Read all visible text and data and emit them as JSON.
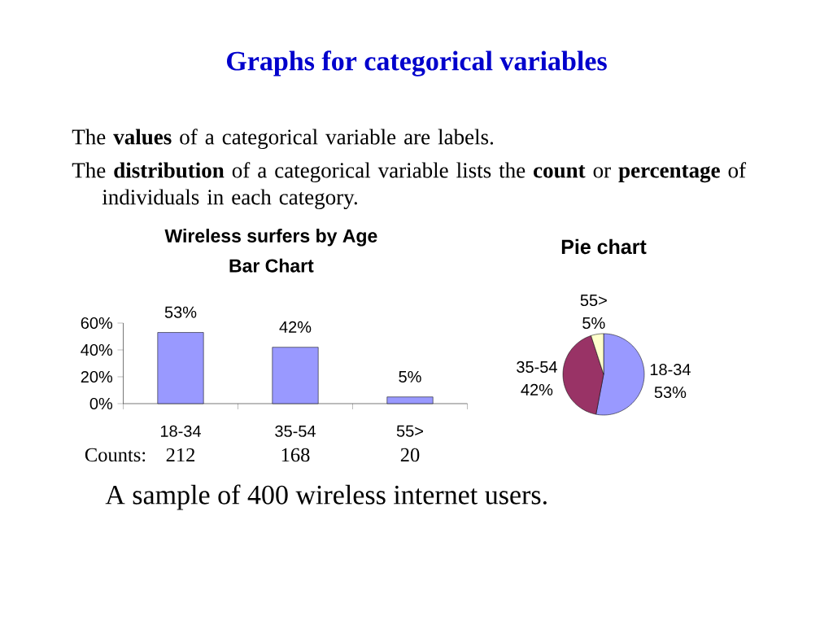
{
  "chart_data": [
    {
      "type": "other",
      "title": "Graphs for categorical variables",
      "annotations": [
        "The **values** of a categorical variable are labels.",
        "The **distribution** of a categorical variable lists the **count** or **percentage** of individuals in each category.",
        "A sample of 400 wireless internet users."
      ]
    },
    {
      "type": "bar",
      "title": "Wireless surfers by Age",
      "subtitle": "Bar Chart",
      "categories": [
        "18-34",
        "35-54",
        "55>"
      ],
      "values": [
        53,
        42,
        5
      ],
      "value_labels": [
        "53%",
        "42%",
        "5%"
      ],
      "color": "#9999ff",
      "ylim": [
        0,
        60
      ],
      "yticks": [
        {
          "value": 0,
          "label": "0%"
        },
        {
          "value": 20,
          "label": "20%"
        },
        {
          "value": 40,
          "label": "40%"
        },
        {
          "value": 60,
          "label": "60%"
        }
      ],
      "annotations": [
        "Counts:",
        "212",
        "168",
        "20"
      ]
    },
    {
      "type": "pie",
      "title": "Pie chart",
      "categories": [
        "18-34",
        "35-54",
        "55>"
      ],
      "values": [
        53,
        42,
        5
      ],
      "value_labels": [
        "53%",
        "42%",
        "5%"
      ],
      "colors": [
        "#9999ff",
        "#993366",
        "#ffffcc"
      ]
    }
  ]
}
